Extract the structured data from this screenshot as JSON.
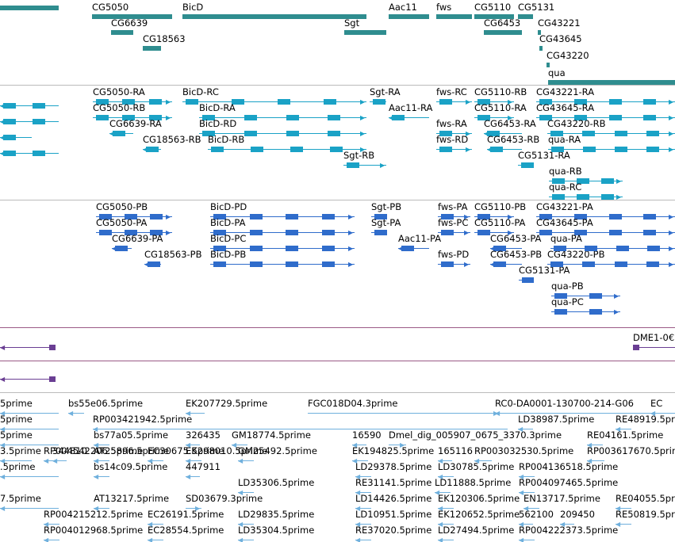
{
  "colors": {
    "gene": "#2f8d8f",
    "mrna": "#1aa2c6",
    "protein": "#2f6ccb",
    "insertion": "#6a3e93",
    "est": "#6fb0dd",
    "separator_gray": "#bbbbbb",
    "separator_purple": "#9b5a86"
  },
  "tracks": {
    "genes": {
      "features": [
        {
          "label": "",
          "start": -5,
          "end": 74,
          "strand": "+"
        },
        {
          "label": "CG5050",
          "start": 116,
          "end": 217,
          "strand": "+"
        },
        {
          "label": "CG6639",
          "start": 140,
          "end": 168,
          "strand": "-"
        },
        {
          "label": "CG18563",
          "start": 180,
          "end": 203,
          "strand": "-"
        },
        {
          "label": "BicD",
          "start": 230,
          "end": 462,
          "strand": "+"
        },
        {
          "label": "Sgt",
          "start": 434,
          "end": 487,
          "strand": "+"
        },
        {
          "label": "Aac11",
          "start": 490,
          "end": 541,
          "strand": "-"
        },
        {
          "label": "fws",
          "start": 550,
          "end": 595,
          "strand": "+"
        },
        {
          "label": "CG5110",
          "start": 598,
          "end": 648,
          "strand": "+"
        },
        {
          "label": "CG6453",
          "start": 610,
          "end": 658,
          "strand": "-"
        },
        {
          "label": "CG5131",
          "start": 653,
          "end": 672,
          "strand": "+"
        },
        {
          "label": "CG43221",
          "start": 678,
          "end": 682,
          "strand": "+"
        },
        {
          "label": "CG43645",
          "start": 680,
          "end": 684,
          "strand": "+"
        },
        {
          "label": "CG43220",
          "start": 689,
          "end": 693,
          "strand": "+"
        },
        {
          "label": "qua",
          "start": 691,
          "end": 856,
          "strand": "+"
        }
      ]
    },
    "transcripts": {
      "features": [
        {
          "label": "",
          "start": -5,
          "end": 74,
          "strand": "-"
        },
        {
          "label": "",
          "start": -5,
          "end": 74,
          "strand": "-"
        },
        {
          "label": "",
          "start": -5,
          "end": 40,
          "strand": "-"
        },
        {
          "label": "",
          "start": -5,
          "end": 74,
          "strand": "-"
        },
        {
          "label": "CG5050-RA",
          "start": 117,
          "end": 217,
          "strand": "+"
        },
        {
          "label": "CG5050-RB",
          "start": 117,
          "end": 217,
          "strand": "+"
        },
        {
          "label": "CG6639-RA",
          "start": 138,
          "end": 168,
          "strand": "-"
        },
        {
          "label": "CG18563-RB",
          "start": 180,
          "end": 203,
          "strand": "-"
        },
        {
          "label": "BicD-RC",
          "start": 230,
          "end": 462,
          "strand": "+"
        },
        {
          "label": "BicD-RA",
          "start": 251,
          "end": 462,
          "strand": "+"
        },
        {
          "label": "BicD-RD",
          "start": 251,
          "end": 462,
          "strand": "+"
        },
        {
          "label": "BicD-RB",
          "start": 262,
          "end": 462,
          "strand": "+"
        },
        {
          "label": "Sgt-RA",
          "start": 466,
          "end": 487,
          "strand": "+"
        },
        {
          "label": "Sgt-RB",
          "start": 433,
          "end": 487,
          "strand": "+"
        },
        {
          "label": "Aac11-RA",
          "start": 490,
          "end": 541,
          "strand": "-"
        },
        {
          "label": "fws-RC",
          "start": 550,
          "end": 595,
          "strand": "+"
        },
        {
          "label": "fws-RA",
          "start": 550,
          "end": 595,
          "strand": "+"
        },
        {
          "label": "fws-RD",
          "start": 550,
          "end": 595,
          "strand": "+"
        },
        {
          "label": "CG5110-RB",
          "start": 598,
          "end": 648,
          "strand": "+"
        },
        {
          "label": "CG5110-RA",
          "start": 598,
          "end": 648,
          "strand": "+"
        },
        {
          "label": "CG6453-RA",
          "start": 610,
          "end": 658,
          "strand": "-"
        },
        {
          "label": "CG6453-RB",
          "start": 614,
          "end": 658,
          "strand": "-"
        },
        {
          "label": "CG5131-RA",
          "start": 653,
          "end": 672,
          "strand": "+"
        },
        {
          "label": "CG43221-RA",
          "start": 676,
          "end": 856,
          "strand": "+"
        },
        {
          "label": "CG43645-RA",
          "start": 676,
          "end": 856,
          "strand": "+"
        },
        {
          "label": "CG43220-RB",
          "start": 690,
          "end": 856,
          "strand": "+"
        },
        {
          "label": "qua-RA",
          "start": 691,
          "end": 856,
          "strand": "+"
        },
        {
          "label": "qua-RB",
          "start": 692,
          "end": 785,
          "strand": "+"
        },
        {
          "label": "qua-RC",
          "start": 692,
          "end": 785,
          "strand": "+"
        }
      ]
    },
    "proteins": {
      "features": [
        {
          "label": "CG5050-PB",
          "start": 121,
          "end": 217,
          "strand": "+"
        },
        {
          "label": "CG5050-PA",
          "start": 121,
          "end": 217,
          "strand": "+"
        },
        {
          "label": "CG6639-PA",
          "start": 141,
          "end": 166,
          "strand": "-"
        },
        {
          "label": "CG18563-PB",
          "start": 182,
          "end": 203,
          "strand": "-"
        },
        {
          "label": "BicD-PD",
          "start": 265,
          "end": 447,
          "strand": "+"
        },
        {
          "label": "BicD-PA",
          "start": 265,
          "end": 447,
          "strand": "+"
        },
        {
          "label": "BicD-PC",
          "start": 265,
          "end": 447,
          "strand": "+"
        },
        {
          "label": "BicD-PB",
          "start": 265,
          "end": 447,
          "strand": "+"
        },
        {
          "label": "Sgt-PB",
          "start": 468,
          "end": 486,
          "strand": "+"
        },
        {
          "label": "Sgt-PA",
          "start": 468,
          "end": 486,
          "strand": "+"
        },
        {
          "label": "Aac11-PA",
          "start": 502,
          "end": 541,
          "strand": "-"
        },
        {
          "label": "fws-PA",
          "start": 552,
          "end": 593,
          "strand": "+"
        },
        {
          "label": "fws-PC",
          "start": 552,
          "end": 593,
          "strand": "+"
        },
        {
          "label": "fws-PD",
          "start": 552,
          "end": 593,
          "strand": "+"
        },
        {
          "label": "CG5110-PB",
          "start": 598,
          "end": 648,
          "strand": "+"
        },
        {
          "label": "CG5110-PA",
          "start": 598,
          "end": 648,
          "strand": "+"
        },
        {
          "label": "CG6453-PA",
          "start": 618,
          "end": 658,
          "strand": "-"
        },
        {
          "label": "CG6453-PB",
          "start": 618,
          "end": 658,
          "strand": "-"
        },
        {
          "label": "CG5131-PA",
          "start": 654,
          "end": 671,
          "strand": "+"
        },
        {
          "label": "CG43221-PA",
          "start": 676,
          "end": 856,
          "strand": "+"
        },
        {
          "label": "CG43645-PA",
          "start": 676,
          "end": 856,
          "strand": "+"
        },
        {
          "label": "CG43220-PB",
          "start": 690,
          "end": 856,
          "strand": "+"
        },
        {
          "label": "qua-PA",
          "start": 694,
          "end": 856,
          "strand": "+"
        },
        {
          "label": "qua-PB",
          "start": 695,
          "end": 782,
          "strand": "+"
        },
        {
          "label": "qua-PC",
          "start": 695,
          "end": 782,
          "strand": "+"
        }
      ]
    },
    "insertions": {
      "features": [
        {
          "label": "",
          "start": -5,
          "end": 70,
          "strand": "-"
        },
        {
          "label": "DME1-0€",
          "start": 798,
          "end": 856,
          "strand": "-"
        },
        {
          "label": "",
          "start": -5,
          "end": 70,
          "strand": "-"
        }
      ]
    },
    "ests": {
      "features": [
        {
          "label": "5prime",
          "start": -5,
          "end": 74,
          "strand": "-"
        },
        {
          "label": "bs55e06.5prime",
          "start": 86,
          "end": 106,
          "strand": "-"
        },
        {
          "label": "EK207729.5prime",
          "start": 234,
          "end": 258,
          "strand": "-"
        },
        {
          "label": "FGC018D04.3prime",
          "start": 388,
          "end": 630,
          "strand": "+"
        },
        {
          "label": "RC0-DA0001-130700-214-G06",
          "start": 624,
          "end": 856,
          "strand": "-"
        },
        {
          "label": "EC",
          "start": 820,
          "end": 856,
          "strand": "-"
        },
        {
          "label": "5prime",
          "start": -5,
          "end": 74,
          "strand": "-"
        },
        {
          "label": "RP003421942.5prime",
          "start": 117,
          "end": 640,
          "strand": "-"
        },
        {
          "label": "LD38987.5prime",
          "start": 653,
          "end": 672,
          "strand": "-"
        },
        {
          "label": "RE48919.5prime",
          "start": 776,
          "end": 796,
          "strand": "-"
        },
        {
          "label": "5prime",
          "start": -5,
          "end": 74,
          "strand": "-"
        },
        {
          "label": "bs77a05.5prime",
          "start": 118,
          "end": 138,
          "strand": "-"
        },
        {
          "label": "326435",
          "start": 234,
          "end": 252,
          "strand": "-"
        },
        {
          "label": "GM18774.5prime",
          "start": 292,
          "end": 312,
          "strand": "-"
        },
        {
          "label": "16590",
          "start": 444,
          "end": 462,
          "strand": "-"
        },
        {
          "label": "Dmel_dig_005907_0675_3370.3prime",
          "start": 490,
          "end": 512,
          "strand": "+"
        },
        {
          "label": "RE04161.5prime",
          "start": 740,
          "end": 760,
          "strand": "-"
        },
        {
          "label": "3.5prime",
          "start": -5,
          "end": 40,
          "strand": "-"
        },
        {
          "label": "344810",
          "start": 66,
          "end": 84,
          "strand": "-"
        },
        {
          "label": "RP004542206.5prime",
          "start": 55,
          "end": 75,
          "strand": "-"
        },
        {
          "label": "AT25896.5prime",
          "start": 118,
          "end": 138,
          "strand": "-"
        },
        {
          "label": "EC30675.5prime",
          "start": 186,
          "end": 206,
          "strand": "-"
        },
        {
          "label": "EK298010.5prime",
          "start": 234,
          "end": 254,
          "strand": "-"
        },
        {
          "label": "GM25492.5prime",
          "start": 300,
          "end": 320,
          "strand": "-"
        },
        {
          "label": "EK194825.5prime",
          "start": 444,
          "end": 464,
          "strand": "-"
        },
        {
          "label": "165116",
          "start": 552,
          "end": 570,
          "strand": "-"
        },
        {
          "label": "RP003032530.5prime",
          "start": 598,
          "end": 620,
          "strand": "-"
        },
        {
          "label": "RP003617670.5prime",
          "start": 740,
          "end": 762,
          "strand": "-"
        },
        {
          "label": ".5prime",
          "start": -5,
          "end": 74,
          "strand": "-"
        },
        {
          "label": "bs14c09.5prime",
          "start": 118,
          "end": 138,
          "strand": "-"
        },
        {
          "label": "447911",
          "start": 234,
          "end": 252,
          "strand": "-"
        },
        {
          "label": "LD29378.5prime",
          "start": 448,
          "end": 468,
          "strand": "-"
        },
        {
          "label": "LD30785.5prime",
          "start": 552,
          "end": 572,
          "strand": "-"
        },
        {
          "label": "RP004136518.5prime",
          "start": 654,
          "end": 674,
          "strand": "-"
        },
        {
          "label": "LD35306.5prime",
          "start": 300,
          "end": 320,
          "strand": "-"
        },
        {
          "label": "RE31141.5prime",
          "start": 448,
          "end": 468,
          "strand": "-"
        },
        {
          "label": "LD11888.5prime",
          "start": 548,
          "end": 568,
          "strand": "-"
        },
        {
          "label": "RP004097465.5prime",
          "start": 654,
          "end": 674,
          "strand": "-"
        },
        {
          "label": "7.5prime",
          "start": -5,
          "end": 74,
          "strand": "-"
        },
        {
          "label": "AT13217.5prime",
          "start": 118,
          "end": 138,
          "strand": "-"
        },
        {
          "label": "SD03679.3prime",
          "start": 234,
          "end": 254,
          "strand": "+"
        },
        {
          "label": "LD14426.5prime",
          "start": 448,
          "end": 468,
          "strand": "-"
        },
        {
          "label": "EK120306.5prime",
          "start": 552,
          "end": 572,
          "strand": "-"
        },
        {
          "label": "EN13717.5prime",
          "start": 660,
          "end": 680,
          "strand": "-"
        },
        {
          "label": "RE04055.5prime",
          "start": 776,
          "end": 796,
          "strand": "-"
        },
        {
          "label": "RP004215212.5prime",
          "start": 55,
          "end": 75,
          "strand": "-"
        },
        {
          "label": "EC26191.5prime",
          "start": 186,
          "end": 206,
          "strand": "-"
        },
        {
          "label": "LD29835.5prime",
          "start": 300,
          "end": 320,
          "strand": "-"
        },
        {
          "label": "LD10951.5prime",
          "start": 448,
          "end": 468,
          "strand": "-"
        },
        {
          "label": "EK120652.5prime",
          "start": 552,
          "end": 572,
          "strand": "-"
        },
        {
          "label": "562100",
          "start": 654,
          "end": 672,
          "strand": "-"
        },
        {
          "label": "209450",
          "start": 706,
          "end": 724,
          "strand": "-"
        },
        {
          "label": "RE50819.5prime",
          "start": 776,
          "end": 796,
          "strand": "-"
        },
        {
          "label": "RP004012968.5prime",
          "start": 55,
          "end": 75,
          "strand": "-"
        },
        {
          "label": "EC28554.5prime",
          "start": 186,
          "end": 206,
          "strand": "-"
        },
        {
          "label": "LD35304.5prime",
          "start": 300,
          "end": 320,
          "strand": "-"
        },
        {
          "label": "RE37020.5prime",
          "start": 448,
          "end": 468,
          "strand": "-"
        },
        {
          "label": "LD27494.5prime",
          "start": 552,
          "end": 572,
          "strand": "-"
        },
        {
          "label": "RP004222373.5prime",
          "start": 654,
          "end": 674,
          "strand": "-"
        }
      ]
    }
  }
}
